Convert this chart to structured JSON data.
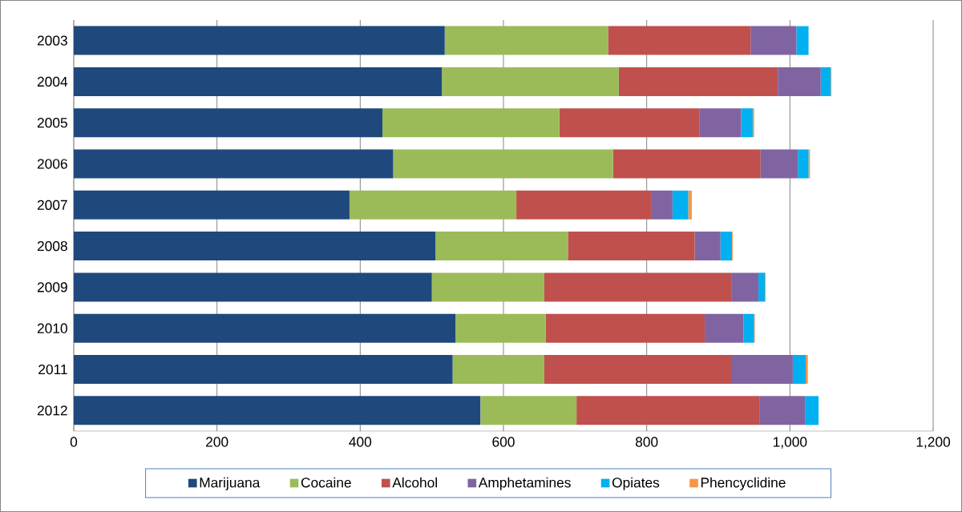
{
  "chart_data": {
    "type": "bar",
    "orientation": "horizontal",
    "stacked": true,
    "categories": [
      "2003",
      "2004",
      "2005",
      "2006",
      "2007",
      "2008",
      "2009",
      "2010",
      "2011",
      "2012"
    ],
    "series": [
      {
        "name": "Marijuana",
        "color": "#1f497d",
        "values": [
          518,
          514,
          431,
          446,
          385,
          505,
          500,
          533,
          529,
          568
        ]
      },
      {
        "name": "Cocaine",
        "color": "#9bbb59",
        "values": [
          228,
          247,
          247,
          307,
          233,
          185,
          157,
          126,
          128,
          134
        ]
      },
      {
        "name": "Alcohol",
        "color": "#c0504d",
        "values": [
          199,
          222,
          196,
          206,
          189,
          177,
          261,
          222,
          262,
          256
        ]
      },
      {
        "name": "Amphetamines",
        "color": "#8064a2",
        "values": [
          64,
          60,
          58,
          52,
          29,
          36,
          38,
          54,
          85,
          63
        ]
      },
      {
        "name": "Opiates",
        "color": "#00b0f0",
        "values": [
          17,
          14,
          16,
          15,
          22,
          16,
          9,
          15,
          18,
          19
        ]
      },
      {
        "name": "Phencyclidine",
        "color": "#f79646",
        "values": [
          0,
          1,
          2,
          2,
          5,
          1,
          1,
          1,
          3,
          0
        ]
      }
    ],
    "xlim": [
      0,
      1200
    ],
    "xticks": [
      0,
      200,
      400,
      600,
      800,
      {
        "value": 1000,
        "label": "1,000"
      },
      {
        "value": 1200,
        "label": "1,200"
      }
    ],
    "grid": "x",
    "legend": "bottom"
  }
}
